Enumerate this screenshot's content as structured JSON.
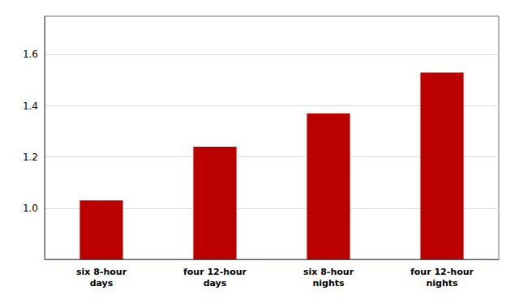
{
  "chart_data": {
    "type": "bar",
    "categories": [
      "six 8-hour\ndays",
      "four 12-hour\ndays",
      "six 8-hour\nnights",
      "four 12-hour\nnights"
    ],
    "values": [
      1.03,
      1.24,
      1.37,
      1.53
    ],
    "color": "#bb0000",
    "ylim": [
      0.8,
      1.75
    ],
    "yticks": [
      {
        "value": 1.0,
        "label": "1.0"
      },
      1.2,
      1.4,
      1.6
    ],
    "grid": true
  }
}
